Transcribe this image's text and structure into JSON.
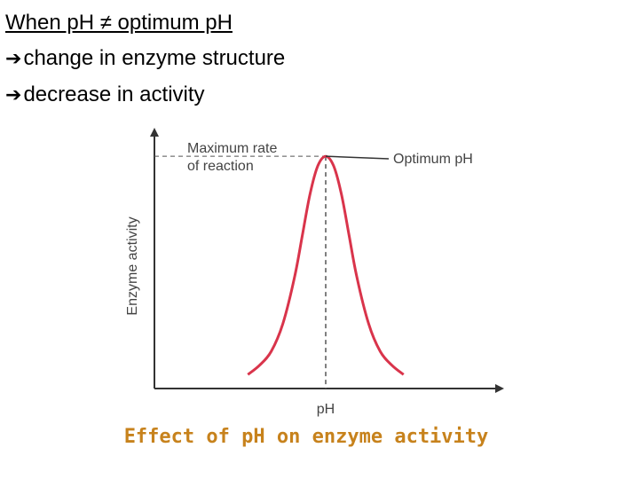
{
  "slide": {
    "heading": "When pH ≠ optimum pH",
    "bullets": [
      {
        "arrow": "➔",
        "text": "change in enzyme structure"
      },
      {
        "arrow": "➔",
        "text": "decrease in activity"
      }
    ],
    "caption": "Effect of pH on enzyme activity"
  },
  "chart_data": {
    "type": "line",
    "title": "",
    "xlabel": "pH",
    "ylabel": "Enzyme activity",
    "x_ticks": "none",
    "y_ticks": "none",
    "annotations": {
      "max_rate": [
        "Maximum rate",
        "of reaction"
      ],
      "optimum": "Optimum pH"
    },
    "grid": false,
    "curve_color": "#d9344b",
    "axis_color": "#333333",
    "series": [
      {
        "x": [
          -1.0,
          -0.85,
          -0.7,
          -0.55,
          -0.4,
          -0.3,
          -0.2,
          -0.1,
          0,
          0.1,
          0.2,
          0.3,
          0.4,
          0.55,
          0.7,
          0.85,
          1.0
        ],
        "y": [
          0.06,
          0.1,
          0.16,
          0.28,
          0.48,
          0.66,
          0.84,
          0.96,
          1.0,
          0.96,
          0.84,
          0.66,
          0.48,
          0.28,
          0.16,
          0.1,
          0.06
        ]
      }
    ],
    "xlim": [
      -2.2,
      2.2
    ],
    "ylim": [
      0,
      1.1
    ],
    "optimum_x": 0,
    "max_y": 1.0
  }
}
